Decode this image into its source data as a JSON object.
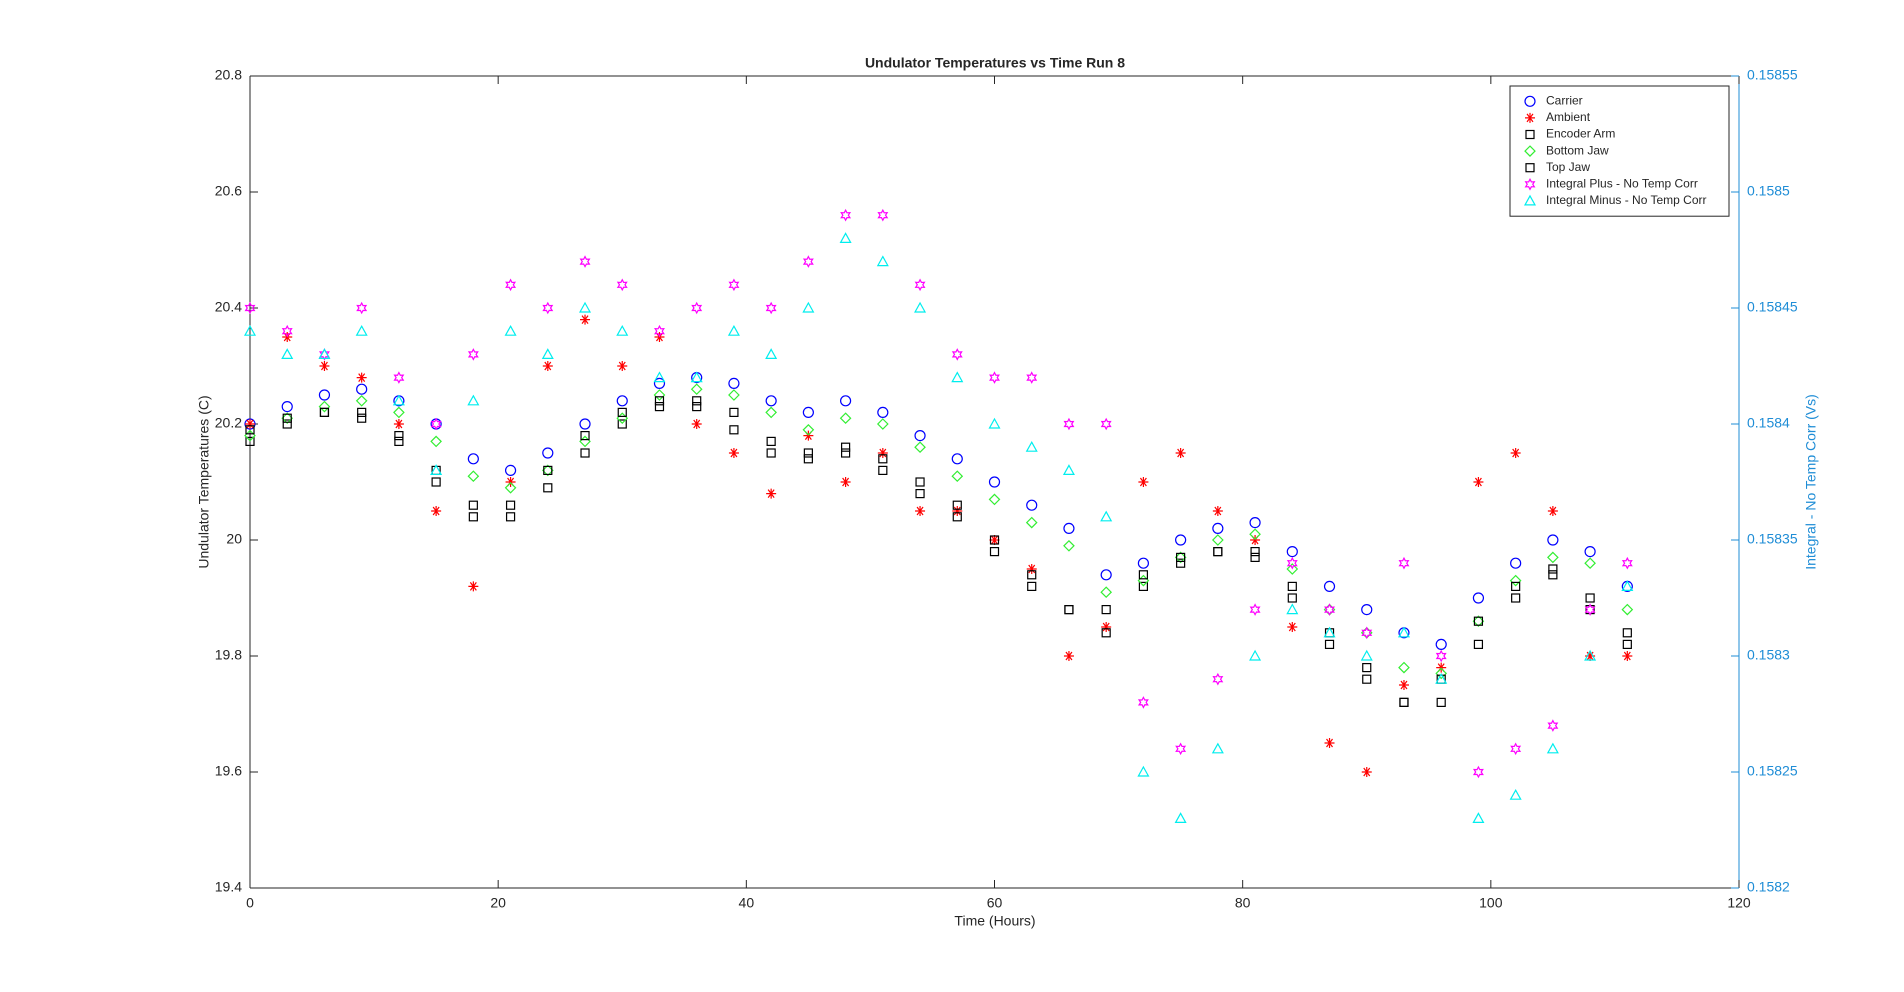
{
  "chart_data": {
    "type": "scatter",
    "title": "Undulator Temperatures vs Time Run 8",
    "xlabel": "Time (Hours)",
    "ylabel": "Undulator Temperatures (C)",
    "y2label": "Integral -  No Temp Corr (Vs)",
    "xlim": [
      0,
      120
    ],
    "xticks": [
      0,
      20,
      40,
      60,
      80,
      100,
      120
    ],
    "ylim": [
      19.4,
      20.8
    ],
    "yticks": [
      19.4,
      19.6,
      19.8,
      20,
      20.2,
      20.4,
      20.6,
      20.8
    ],
    "y2lim": [
      0.1582,
      0.15855
    ],
    "y2ticks": [
      0.1582,
      0.15825,
      0.1583,
      0.15835,
      0.1584,
      0.15845,
      0.1585,
      0.15855
    ],
    "y2color": "#1f8dd6",
    "legend": "northeast",
    "x": [
      0,
      3,
      6,
      9,
      12,
      15,
      18,
      21,
      24,
      27,
      30,
      33,
      36,
      39,
      42,
      45,
      48,
      51,
      54,
      57,
      60,
      63,
      66,
      69,
      72,
      75,
      78,
      81,
      84,
      87,
      90,
      93,
      96,
      99,
      102,
      105,
      108,
      111
    ],
    "series": [
      {
        "name": "Carrier",
        "color": "#0000ff",
        "marker": "o",
        "values": [
          20.2,
          20.23,
          20.25,
          20.26,
          20.24,
          20.2,
          20.14,
          20.12,
          20.15,
          20.2,
          20.24,
          20.27,
          20.28,
          20.27,
          20.24,
          20.22,
          20.24,
          20.22,
          20.18,
          20.14,
          20.1,
          20.06,
          20.02,
          19.94,
          19.96,
          20.0,
          20.02,
          20.03,
          19.98,
          19.92,
          19.88,
          19.84,
          19.82,
          19.9,
          19.96,
          20.0,
          19.98,
          19.92
        ]
      },
      {
        "name": "Ambient",
        "color": "#ff0000",
        "marker": "*",
        "values": [
          20.2,
          20.35,
          20.3,
          20.28,
          20.2,
          20.05,
          19.92,
          20.1,
          20.3,
          20.38,
          20.3,
          20.35,
          20.2,
          20.15,
          20.08,
          20.18,
          20.1,
          20.15,
          20.05,
          20.05,
          20.0,
          19.95,
          19.8,
          19.85,
          20.1,
          20.15,
          20.05,
          20.0,
          19.85,
          19.65,
          19.6,
          19.75,
          19.78,
          20.1,
          20.15,
          20.05,
          19.8,
          19.8
        ]
      },
      {
        "name": "Encoder Arm",
        "color": "#000000",
        "marker": "s",
        "values": [
          20.17,
          20.2,
          20.22,
          20.22,
          20.18,
          20.12,
          20.06,
          20.04,
          20.09,
          20.15,
          20.2,
          20.23,
          20.24,
          20.22,
          20.17,
          20.14,
          20.16,
          20.14,
          20.1,
          20.06,
          20.0,
          19.94,
          19.88,
          19.84,
          19.92,
          19.96,
          19.98,
          19.98,
          19.92,
          19.84,
          19.78,
          19.72,
          19.72,
          19.82,
          19.9,
          19.95,
          19.9,
          19.82
        ]
      },
      {
        "name": "Bottom Jaw",
        "color": "#33ee33",
        "marker": "d",
        "values": [
          20.18,
          20.21,
          20.23,
          20.24,
          20.22,
          20.17,
          20.11,
          20.09,
          20.12,
          20.17,
          20.21,
          20.25,
          20.26,
          20.25,
          20.22,
          20.19,
          20.21,
          20.2,
          20.16,
          20.11,
          20.07,
          20.03,
          19.99,
          19.91,
          19.93,
          19.97,
          20.0,
          20.01,
          19.95,
          19.88,
          19.84,
          19.78,
          19.77,
          19.86,
          19.93,
          19.97,
          19.96,
          19.88
        ]
      },
      {
        "name": "Top Jaw",
        "color": "#000000",
        "marker": "s",
        "values": [
          20.19,
          20.21,
          20.22,
          20.21,
          20.17,
          20.1,
          20.04,
          20.06,
          20.12,
          20.18,
          20.22,
          20.24,
          20.23,
          20.19,
          20.15,
          20.15,
          20.15,
          20.12,
          20.08,
          20.04,
          19.98,
          19.92,
          19.88,
          19.88,
          19.94,
          19.97,
          19.98,
          19.97,
          19.9,
          19.82,
          19.76,
          19.72,
          19.76,
          19.86,
          19.92,
          19.94,
          19.88,
          19.84
        ]
      },
      {
        "name": "Integral Plus -  No Temp Corr",
        "color": "#ff00ff",
        "marker": "h",
        "axis": "y2",
        "values": [
          0.15845,
          0.15844,
          0.15843,
          0.15845,
          0.15842,
          0.1584,
          0.15843,
          0.15846,
          0.15845,
          0.15847,
          0.15846,
          0.15844,
          0.15845,
          0.15846,
          0.15845,
          0.15847,
          0.15849,
          0.15849,
          0.15846,
          0.15843,
          0.15842,
          0.15842,
          0.1584,
          0.1584,
          0.15828,
          0.15826,
          0.15829,
          0.15832,
          0.15834,
          0.15832,
          0.15831,
          0.15834,
          0.1583,
          0.15825,
          0.15826,
          0.15827,
          0.15832,
          0.15834
        ]
      },
      {
        "name": "Integral Minus -  No Temp Corr",
        "color": "#00eeee",
        "marker": "^",
        "axis": "y2",
        "values": [
          0.15844,
          0.15843,
          0.15843,
          0.15844,
          0.15841,
          0.15838,
          0.15841,
          0.15844,
          0.15843,
          0.15845,
          0.15844,
          0.15842,
          0.15842,
          0.15844,
          0.15843,
          0.15845,
          0.15848,
          0.15847,
          0.15845,
          0.15842,
          0.1584,
          0.15839,
          0.15838,
          0.15836,
          0.15825,
          0.15823,
          0.15826,
          0.1583,
          0.15832,
          0.15831,
          0.1583,
          0.15831,
          0.15829,
          0.15823,
          0.15824,
          0.15826,
          0.1583,
          0.15833
        ]
      }
    ]
  }
}
